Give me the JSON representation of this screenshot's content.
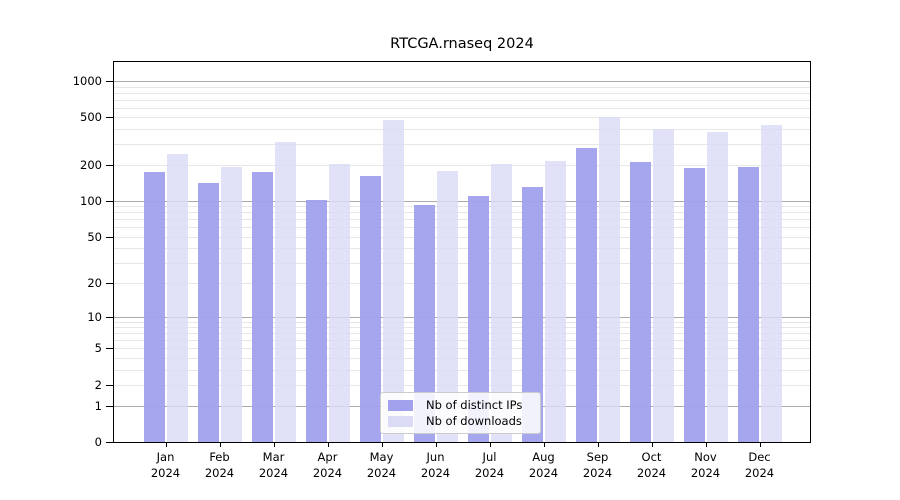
{
  "title": "RTCGA.rnaseq 2024",
  "chart_data": {
    "type": "bar",
    "title": "RTCGA.rnaseq 2024",
    "xlabel": "",
    "ylabel": "",
    "yscale": "log1p",
    "ylim": [
      0,
      1440
    ],
    "yticks": [
      0,
      1,
      2,
      5,
      10,
      20,
      50,
      100,
      200,
      500,
      1000
    ],
    "grid": "horizontal log minors on, majors at 1,10,100,1000",
    "legend_position": "inside bottom-center",
    "categories": [
      "Jan 2024",
      "Feb 2024",
      "Mar 2024",
      "Apr 2024",
      "May 2024",
      "Jun 2024",
      "Jul 2024",
      "Aug 2024",
      "Sep 2024",
      "Oct 2024",
      "Nov 2024",
      "Dec 2024"
    ],
    "series": [
      {
        "name": "Nb of distinct IPs",
        "color": "#a1a1ee",
        "values": [
          174,
          140,
          174,
          101,
          162,
          92,
          110,
          132,
          278,
          213,
          190,
          193
        ]
      },
      {
        "name": "Nb of downloads",
        "color": "#dbdbf6",
        "values": [
          245,
          191,
          312,
          205,
          474,
          179,
          205,
          217,
          500,
          400,
          378,
          432
        ]
      }
    ]
  }
}
